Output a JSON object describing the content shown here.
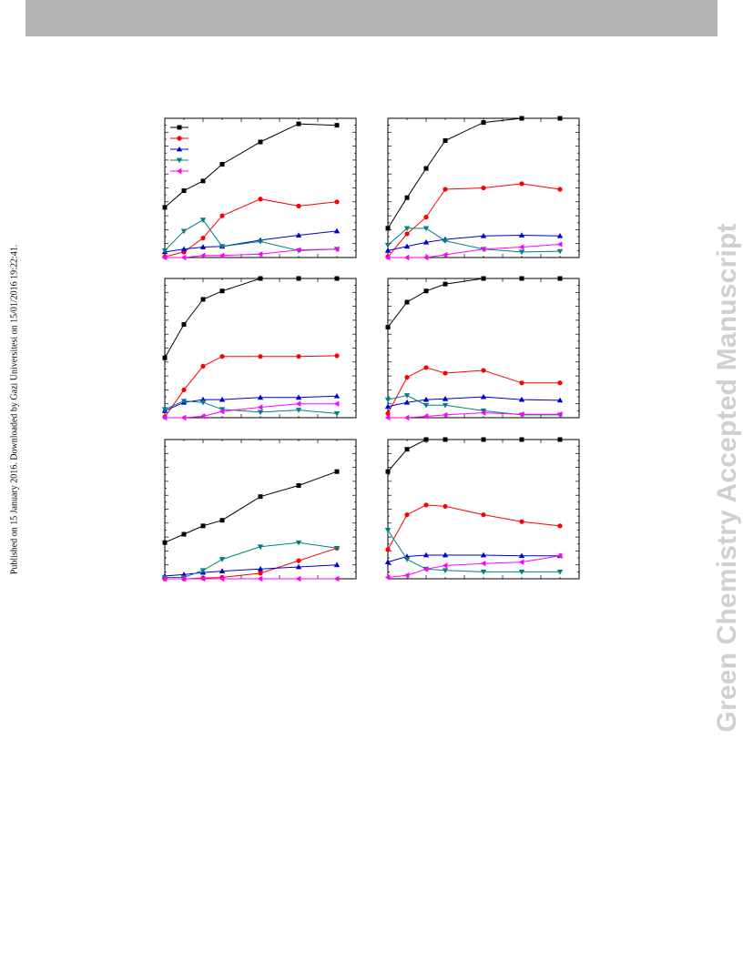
{
  "watermark_text": "Green Chemistry Accepted Manuscript",
  "published_text": "Published on 15 January 2016. Downloaded by Gazi Universitesi on 15/01/2016 19:22:41.",
  "colors": {
    "header_bar": "#b3b3b3",
    "series": [
      "#000000",
      "#ff0000",
      "#0000cc",
      "#008080",
      "#ff00ff"
    ]
  },
  "chart_data": [
    {
      "type": "line",
      "x": [
        0,
        0.5,
        1,
        1.5,
        2.5,
        3.5,
        4.5
      ],
      "ylim": [
        0,
        100
      ],
      "xlim": [
        0,
        5
      ],
      "legend_position": "top-left",
      "series": [
        {
          "marker": "square",
          "values": [
            36,
            48,
            55,
            67,
            83,
            96,
            95
          ]
        },
        {
          "marker": "circle",
          "values": [
            0.5,
            4,
            14,
            30,
            42,
            37,
            40
          ]
        },
        {
          "marker": "triangle-up",
          "values": [
            4,
            6,
            7.5,
            8,
            12.5,
            16,
            19
          ]
        },
        {
          "marker": "triangle-down",
          "values": [
            5,
            19,
            27,
            8,
            11.5,
            5,
            6
          ]
        },
        {
          "marker": "triangle-left",
          "values": [
            0,
            0,
            1.5,
            1.5,
            2.5,
            5.5,
            6
          ]
        }
      ]
    },
    {
      "type": "line",
      "x": [
        0,
        0.5,
        1,
        1.5,
        2.5,
        3.5,
        4.5
      ],
      "ylim": [
        0,
        100
      ],
      "xlim": [
        0,
        5
      ],
      "series": [
        {
          "marker": "square",
          "values": [
            21,
            43,
            64,
            84,
            97,
            100,
            100
          ]
        },
        {
          "marker": "circle",
          "values": [
            0.5,
            17,
            29,
            49,
            50,
            53,
            49
          ]
        },
        {
          "marker": "triangle-up",
          "values": [
            5,
            8,
            11,
            13,
            15.5,
            16,
            15.5
          ]
        },
        {
          "marker": "triangle-down",
          "values": [
            9,
            21,
            21,
            12,
            6,
            4,
            4.5
          ]
        },
        {
          "marker": "triangle-left",
          "values": [
            0,
            0,
            0,
            2,
            6,
            7.5,
            9.5
          ]
        }
      ]
    },
    {
      "type": "line",
      "x": [
        0,
        0.5,
        1,
        1.5,
        2.5,
        3.5,
        4.5
      ],
      "ylim": [
        0,
        100
      ],
      "xlim": [
        0,
        5
      ],
      "series": [
        {
          "marker": "square",
          "values": [
            43,
            67,
            85,
            91,
            100,
            100,
            100
          ]
        },
        {
          "marker": "circle",
          "values": [
            0.5,
            20,
            37,
            44,
            44,
            44,
            44.5
          ]
        },
        {
          "marker": "triangle-up",
          "values": [
            5,
            11,
            13,
            13,
            14.5,
            14.5,
            15.5
          ]
        },
        {
          "marker": "triangle-down",
          "values": [
            6,
            12,
            11,
            6,
            4,
            5.5,
            3
          ]
        },
        {
          "marker": "triangle-left",
          "values": [
            0,
            0,
            1,
            4.5,
            7.5,
            10,
            10
          ]
        }
      ]
    },
    {
      "type": "line",
      "x": [
        0,
        0.5,
        1,
        1.5,
        2.5,
        3.5,
        4.5
      ],
      "ylim": [
        0,
        100
      ],
      "xlim": [
        0,
        5
      ],
      "series": [
        {
          "marker": "square",
          "values": [
            65,
            83,
            91,
            96,
            100,
            100,
            100
          ]
        },
        {
          "marker": "circle",
          "values": [
            3,
            29,
            36,
            32,
            34,
            25,
            25
          ]
        },
        {
          "marker": "triangle-up",
          "values": [
            8,
            11,
            13,
            13.5,
            15,
            13,
            12.5
          ]
        },
        {
          "marker": "triangle-down",
          "values": [
            13,
            16,
            9,
            9,
            5,
            2,
            2
          ]
        },
        {
          "marker": "triangle-left",
          "values": [
            0,
            0,
            1,
            2,
            3.5,
            2.5,
            2.5
          ]
        }
      ]
    },
    {
      "type": "line",
      "x": [
        0,
        0.5,
        1,
        1.5,
        2.5,
        3.5,
        4.5
      ],
      "ylim": [
        0,
        100
      ],
      "xlim": [
        0,
        5
      ],
      "series": [
        {
          "marker": "square",
          "values": [
            26,
            32,
            38,
            42,
            59,
            67,
            77
          ]
        },
        {
          "marker": "circle",
          "values": [
            0,
            0,
            0.5,
            1,
            4,
            13,
            22
          ]
        },
        {
          "marker": "triangle-up",
          "values": [
            2,
            3,
            4.5,
            5.5,
            7,
            8.5,
            10
          ]
        },
        {
          "marker": "triangle-down",
          "values": [
            1,
            1,
            6,
            14,
            23,
            26,
            22
          ]
        },
        {
          "marker": "triangle-left",
          "values": [
            0,
            0,
            0,
            0,
            0,
            0,
            0
          ]
        }
      ]
    },
    {
      "type": "line",
      "x": [
        0,
        0.5,
        1,
        1.5,
        2.5,
        3.5,
        4.5
      ],
      "ylim": [
        0,
        100
      ],
      "xlim": [
        0,
        5
      ],
      "series": [
        {
          "marker": "square",
          "values": [
            77,
            93,
            100,
            100,
            100,
            100,
            100
          ]
        },
        {
          "marker": "circle",
          "values": [
            21,
            46,
            53,
            52,
            46,
            41,
            38
          ]
        },
        {
          "marker": "triangle-up",
          "values": [
            12,
            16,
            17,
            17,
            17,
            16.5,
            16.5
          ]
        },
        {
          "marker": "triangle-down",
          "values": [
            35,
            14,
            7,
            6,
            5,
            5,
            5
          ]
        },
        {
          "marker": "triangle-left",
          "values": [
            1,
            2.5,
            7,
            9.5,
            11,
            12,
            16.5
          ]
        }
      ]
    }
  ]
}
